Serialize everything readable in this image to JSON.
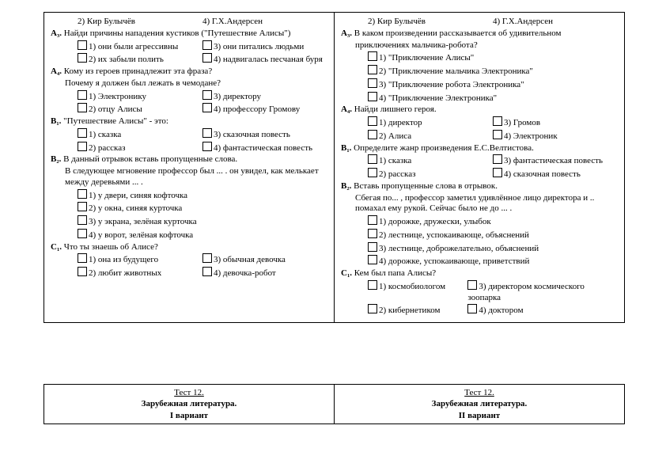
{
  "left": {
    "top": {
      "opt2": "2) Кир Булычёв",
      "opt4": "4) Г.Х.Андерсен"
    },
    "A3": {
      "label": "А₃.",
      "text": "Найди причины нападения кустиков (\"Путешествие Алисы\")",
      "o1": "1) они были агрессивны",
      "o3": "3) они питались людьми",
      "o2": "2) их забыли полить",
      "o4": "4) надвигалась песчаная буря"
    },
    "A4": {
      "label": "А₄.",
      "text": "Кому из героев принадлежит эта фраза?",
      "sub": "Почему я должен был лежать в чемодане?",
      "o1": "1) Электронику",
      "o3": "3) директору",
      "o2": "2) отцу Алисы",
      "o4": "4) профессору Громову"
    },
    "B1": {
      "label": "В₁.",
      "text": "\"Путешествие Алисы\" - это:",
      "o1": "1) сказка",
      "o3": "3) сказочная повесть",
      "o2": "2) рассказ",
      "o4": "4) фантастическая повесть"
    },
    "B2": {
      "label": "В₂.",
      "text": "В данный отрывок вставь пропущенные слова.",
      "sub": "В следующее мгновение профессор был ... . он увидел, как мелькает между деревьями ... .",
      "o1": "1) у двери, синяя кофточка",
      "o2": "2) у окна, синяя курточка",
      "o3": "3) у экрана, зелёная курточка",
      "o4": "4) у ворот, зелёная кофточка"
    },
    "C1": {
      "label": "С₁.",
      "text": "Что ты знаешь об Алисе?",
      "o1": "1) она из будущего",
      "o3": "3) обычная девочка",
      "o2": "2) любит животных",
      "o4": "4) девочка-робот"
    }
  },
  "right": {
    "top": {
      "opt2": "2) Кир Булычёв",
      "opt4": "4) Г.Х.Андерсен"
    },
    "A3": {
      "label": "А₃.",
      "text": "В каком произведении рассказывается об удивительном",
      "text2": "приключениях мальчика-робота?",
      "o1": "1) \"Приключение Алисы\"",
      "o2": "2) \"Приключение мальчика Электроника\"",
      "o3": "3) \"Приключение робота Электроника\"",
      "o4": "4) \"Приключение Электроника\""
    },
    "A4": {
      "label": "А₄.",
      "text": "Найди лишнего героя.",
      "o1": "1) директор",
      "o3": "3) Громов",
      "o2": "2) Алиса",
      "o4": "4) Электроник"
    },
    "B1": {
      "label": "В₁.",
      "text": "Определите жанр произведения Е.С.Велтистова.",
      "o1": "1) сказка",
      "o3": "3) фантастическая повесть",
      "o2": "2) рассказ",
      "o4": "4) сказочная повесть"
    },
    "B2": {
      "label": "В₂.",
      "text": "Вставь пропущенные слова в отрывок.",
      "sub": "Сбегая по... , профессор заметил удивлённое лицо директора и .. помахал ему рукой. Сейчас было не до ... .",
      "o1": "1) дорожке, дружески, улыбок",
      "o2": "2) лестнице, успокаивающе, объяснений",
      "o3": "3) лестнице, доброжелательно, объяснений",
      "o4": "4) дорожке, успокаивающе, приветствий"
    },
    "C1": {
      "label": "С₁.",
      "text": "Кем был папа Алисы?",
      "o1": "1) космобиологом",
      "o3": "3) директором космического зоопарка",
      "o2": "2) кибернетиком",
      "o4": "4) доктором"
    }
  },
  "footer": {
    "line1": "Тест 12.",
    "line2": "Зарубежная литература.",
    "left_variant": "I вариант",
    "right_variant": "II вариант"
  }
}
